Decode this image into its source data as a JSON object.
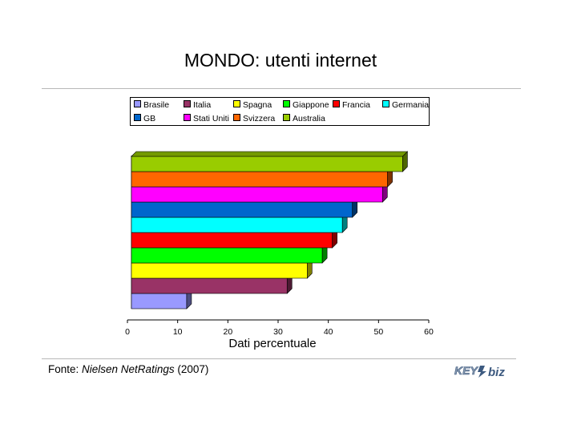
{
  "chart_data": {
    "type": "bar",
    "orientation": "horizontal",
    "title": "MONDO: utenti internet",
    "xlabel": "Dati percentuale",
    "ylabel": "",
    "xlim": [
      0,
      60
    ],
    "xticks": [
      "0",
      "10",
      "20",
      "30",
      "40",
      "50",
      "60"
    ],
    "grid": false,
    "legend_position": "top",
    "series": [
      {
        "name": "Brasile",
        "value": 11,
        "color": "#9999ff"
      },
      {
        "name": "Italia",
        "value": 31,
        "color": "#993366"
      },
      {
        "name": "Spagna",
        "value": 35,
        "color": "#ffff00"
      },
      {
        "name": "Giappone",
        "value": 38,
        "color": "#00ff00"
      },
      {
        "name": "Francia",
        "value": 40,
        "color": "#ff0000"
      },
      {
        "name": "Germania",
        "value": 42,
        "color": "#00ffff"
      },
      {
        "name": "GB",
        "value": 44,
        "color": "#0066cc"
      },
      {
        "name": "Stati Uniti",
        "value": 50,
        "color": "#ff00ff"
      },
      {
        "name": "Svizzera",
        "value": 51,
        "color": "#ff6600"
      },
      {
        "name": "Australia",
        "value": 54,
        "color": "#99cc00"
      }
    ]
  },
  "source": {
    "prefix": "Fonte: ",
    "name": "Nielsen NetRatings",
    "suffix": " (2007)"
  },
  "logo": {
    "text_left": "KEY",
    "text_right": "biz"
  }
}
